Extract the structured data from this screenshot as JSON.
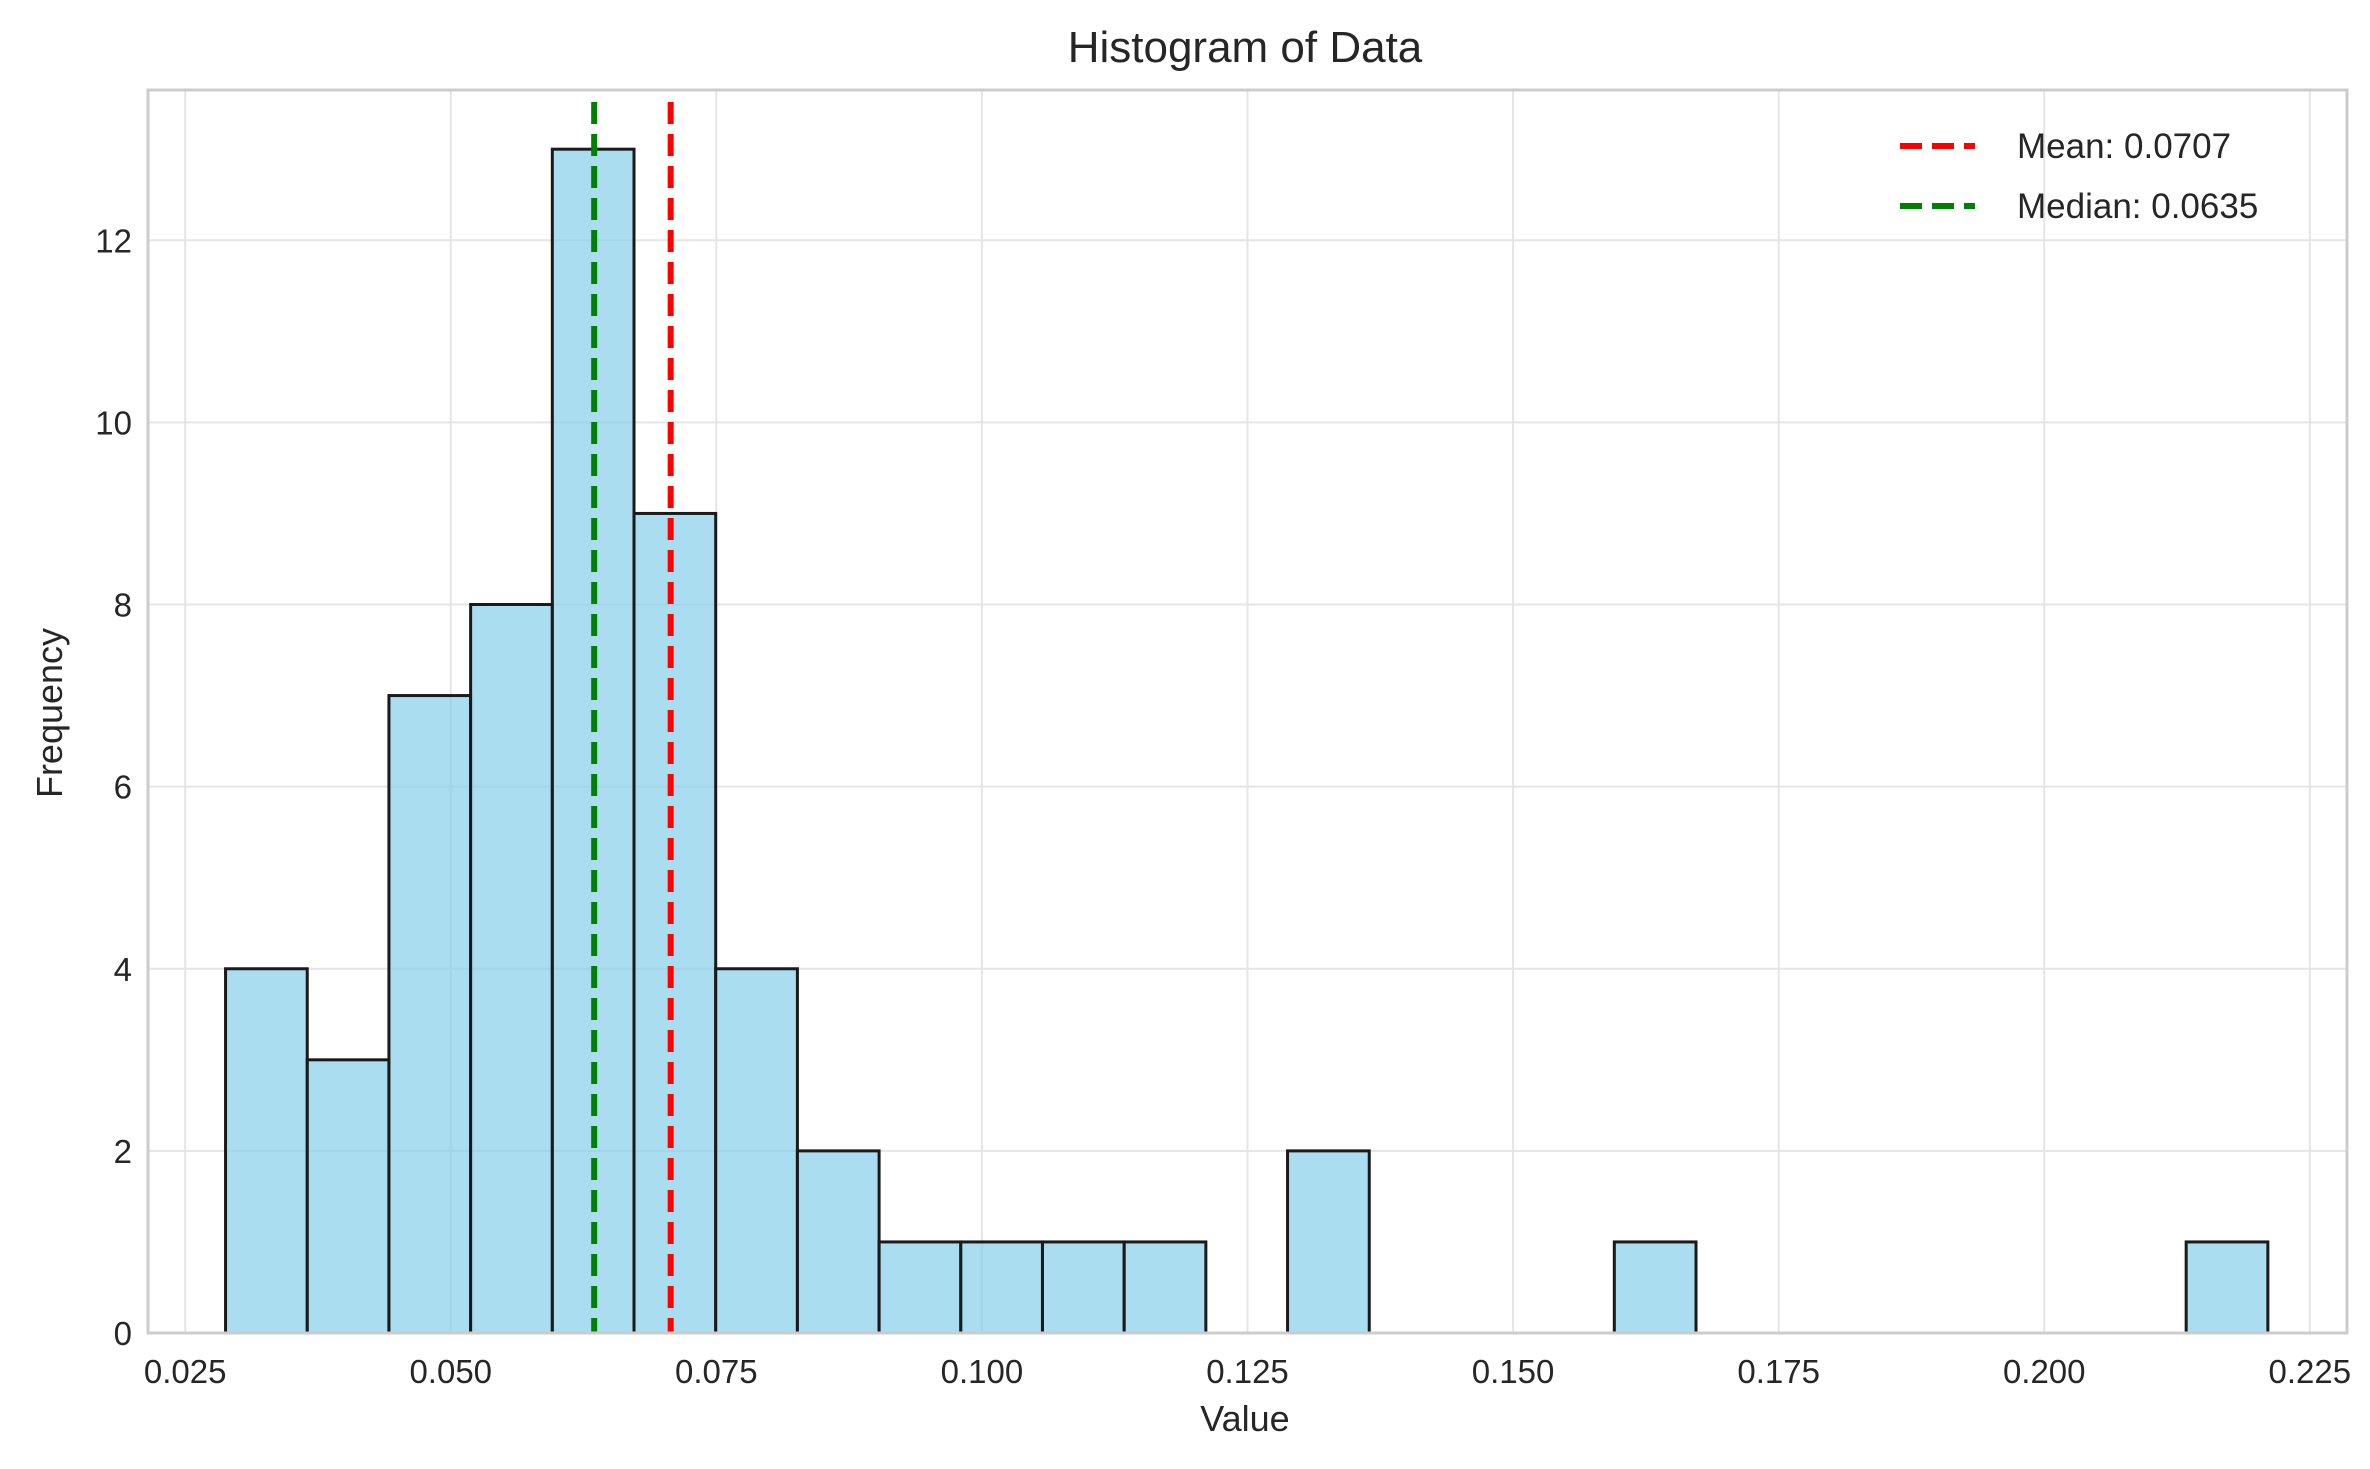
{
  "chart_data": {
    "type": "bar",
    "title": "Histogram of Data",
    "xlabel": "Value",
    "ylabel": "Frequency",
    "xlim": [
      0.0215,
      0.2285
    ],
    "ylim": [
      0,
      13.65
    ],
    "xticks": [
      0.025,
      0.05,
      0.075,
      0.1,
      0.125,
      0.15,
      0.175,
      0.2,
      0.225
    ],
    "xtick_labels": [
      "0.025",
      "0.050",
      "0.075",
      "0.100",
      "0.125",
      "0.150",
      "0.175",
      "0.200",
      "0.225"
    ],
    "yticks": [
      0,
      2,
      4,
      6,
      8,
      10,
      12
    ],
    "ytick_labels": [
      "0",
      "2",
      "4",
      "6",
      "8",
      "10",
      "12"
    ],
    "bin_start": 0.0288,
    "bin_width": 0.00769,
    "counts": [
      4,
      3,
      7,
      8,
      13,
      9,
      4,
      2,
      1,
      1,
      1,
      1,
      0,
      2,
      0,
      0,
      0,
      1,
      0,
      0,
      0,
      0,
      0,
      0,
      1
    ],
    "bar_color": "#87ceeb",
    "edge_color": "#1a1a1a",
    "grid": true,
    "legend_position": "top-right",
    "lines": [
      {
        "label": "Mean: 0.0707",
        "x": 0.0707,
        "color": "#ff0000",
        "style": "dashed"
      },
      {
        "label": "Median: 0.0635",
        "x": 0.0635,
        "color": "#008000",
        "style": "dashed"
      }
    ]
  }
}
